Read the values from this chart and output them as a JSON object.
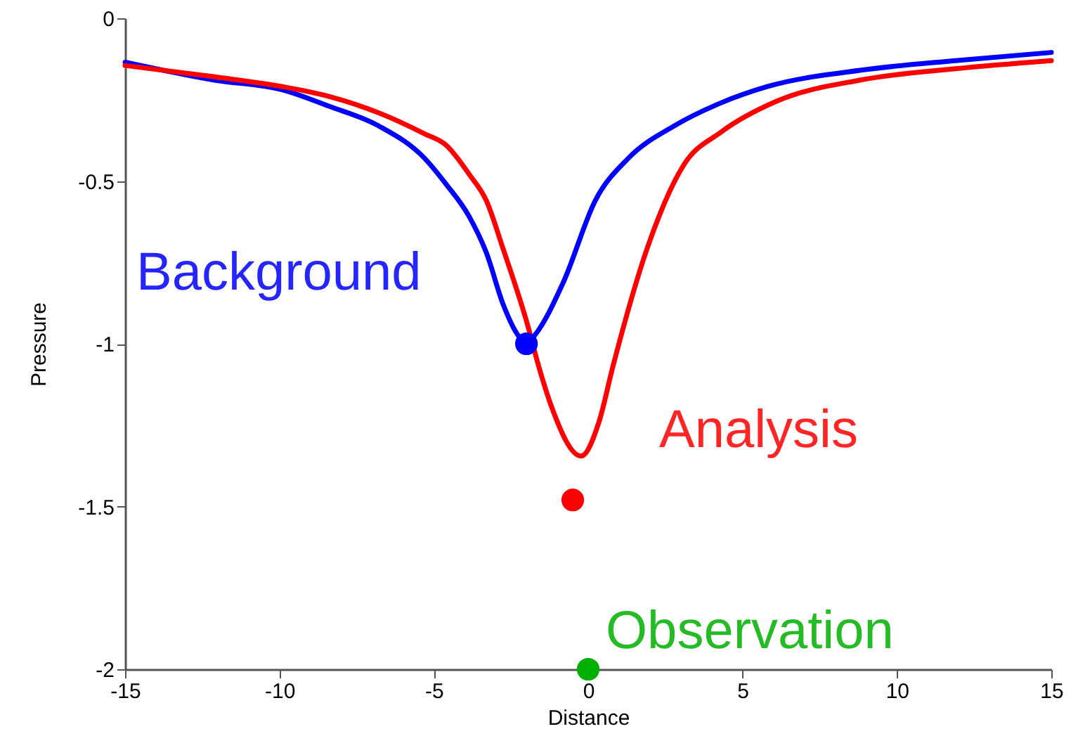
{
  "chart_data": {
    "type": "line",
    "xlabel": "Distance",
    "ylabel": "Pressure",
    "xlim": [
      -15,
      15
    ],
    "ylim": [
      -2,
      0
    ],
    "xticks": [
      -15,
      -10,
      -5,
      0,
      5,
      10,
      15
    ],
    "yticks": [
      -2,
      -1.5,
      -1,
      -0.5,
      0
    ],
    "grid": false,
    "series": [
      {
        "name": "Background",
        "color": "#0000ff",
        "marker": "none",
        "x": [
          -15,
          -12.1,
          -9.9,
          -8.4,
          -6.8,
          -5.3,
          -4.6,
          -3.85,
          -3.3,
          -2.75,
          -2.3,
          -2.0,
          -1.7,
          -0.8,
          0.23,
          1.3,
          2.8,
          4.3,
          5.8,
          8.8,
          11.9,
          15
        ],
        "values": [
          -0.135,
          -0.19,
          -0.22,
          -0.27,
          -0.33,
          -0.43,
          -0.51,
          -0.61,
          -0.72,
          -0.88,
          -0.97,
          -1.0,
          -0.97,
          -0.81,
          -0.56,
          -0.43,
          -0.33,
          -0.26,
          -0.21,
          -0.16,
          -0.13,
          -0.105
        ]
      },
      {
        "name": "Analysis",
        "color": "#ff0000",
        "marker": "none",
        "x": [
          -15,
          -12.1,
          -9.9,
          -8.4,
          -6.8,
          -5.3,
          -4.6,
          -3.85,
          -3.3,
          -2.75,
          -2.0,
          -1.6,
          -1.2,
          -0.23,
          0.35,
          0.8,
          1.9,
          3.1,
          4.3,
          6.1,
          8.8,
          11.9,
          15
        ],
        "values": [
          -0.145,
          -0.18,
          -0.21,
          -0.24,
          -0.29,
          -0.355,
          -0.39,
          -0.48,
          -0.56,
          -0.71,
          -0.93,
          -1.07,
          -1.19,
          -1.345,
          -1.24,
          -1.07,
          -0.71,
          -0.45,
          -0.35,
          -0.255,
          -0.19,
          -0.155,
          -0.13
        ]
      },
      {
        "name": "Observation",
        "type": "scatter",
        "color": "#00b000",
        "marker": "circle",
        "x": [
          0
        ],
        "values": [
          -2
        ]
      },
      {
        "type": "scatter",
        "color": "#0000ff",
        "marker": "circle",
        "x": [
          -2.0
        ],
        "values": [
          -1.0
        ]
      },
      {
        "type": "scatter",
        "color": "#ff0000",
        "marker": "circle",
        "x": [
          -0.5
        ],
        "values": [
          -1.48
        ]
      }
    ]
  }
}
